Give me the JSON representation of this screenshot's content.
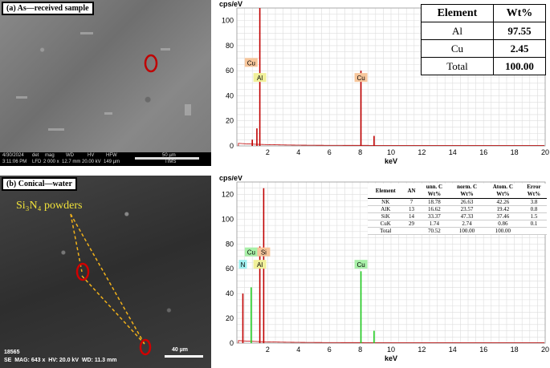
{
  "panel_a": {
    "label": "(a) As—received sample",
    "sem_info": {
      "date": "4/30/2024",
      "time": "3:11:06 PM",
      "det": "det",
      "det_val": "LFD",
      "mag": "mag",
      "mag_val": "2 000 x",
      "wd": "WD",
      "wd_val": "12.7 mm",
      "hv": "HV",
      "hv_val": "20.00 kV",
      "hfw": "HFW",
      "hfw_val": "149 µm",
      "scale": "50 µm",
      "brand": "TIMS"
    },
    "table": {
      "headers": [
        "Element",
        "Wt%"
      ],
      "rows": [
        [
          "Al",
          "97.55"
        ],
        [
          "Cu",
          "2.45"
        ],
        [
          "Total",
          "100.00"
        ]
      ]
    }
  },
  "panel_b": {
    "label": "(b) Conical—water",
    "annotation": "Si₃N₄ powders",
    "sem_info": {
      "id": "18565",
      "line": "SE  MAG: 643 x  HV: 20.0 kV  WD: 11.3 mm",
      "scale": "40 µm"
    },
    "table": {
      "headers": [
        "Element",
        "AN",
        "unn. C\nWt%",
        "norm. C\nWt%",
        "Atom. C\nWt%",
        "Error\nWt%"
      ],
      "rows": [
        [
          "NK",
          "7",
          "18.78",
          "26.63",
          "42.26",
          "3.8"
        ],
        [
          "AlK",
          "13",
          "16.62",
          "23.57",
          "19.42",
          "0.8"
        ],
        [
          "SiK",
          "14",
          "33.37",
          "47.33",
          "37.46",
          "1.5"
        ],
        [
          "CuK",
          "29",
          "1.74",
          "2.74",
          "0.86",
          "0.1"
        ],
        [
          "Total",
          "",
          "70.52",
          "100.00",
          "100.00",
          ""
        ]
      ]
    }
  },
  "chart_data": [
    {
      "type": "line",
      "ylabel": "cps/eV",
      "xlabel": "keV",
      "xlim": [
        0,
        20
      ],
      "ylim": [
        0,
        110
      ],
      "xticks": [
        2,
        4,
        6,
        8,
        10,
        12,
        14,
        16,
        18,
        20
      ],
      "yticks": [
        0,
        20,
        40,
        60,
        80,
        100
      ],
      "peaks": [
        {
          "x": 1.0,
          "y": 5
        },
        {
          "x": 1.49,
          "y": 110
        },
        {
          "x": 1.3,
          "y": 14
        },
        {
          "x": 8.05,
          "y": 60
        },
        {
          "x": 8.9,
          "y": 8
        }
      ],
      "peak_labels": [
        {
          "text": "Cu",
          "x": 0.93,
          "y": 65,
          "color": "#f7c69b"
        },
        {
          "text": "Al",
          "x": 1.49,
          "y": 53,
          "color": "#f0f09a"
        },
        {
          "text": "Cu",
          "x": 8.05,
          "y": 53,
          "color": "#f7c69b"
        }
      ],
      "color": "#c00000"
    },
    {
      "type": "line",
      "ylabel": "cps/eV",
      "xlabel": "keV",
      "xlim": [
        0,
        20
      ],
      "ylim": [
        0,
        130
      ],
      "xticks": [
        2,
        4,
        6,
        8,
        10,
        12,
        14,
        16,
        18,
        20
      ],
      "yticks": [
        0,
        20,
        40,
        60,
        80,
        100,
        120
      ],
      "peaks": [
        {
          "x": 0.39,
          "y": 40
        },
        {
          "x": 0.93,
          "y": 45
        },
        {
          "x": 1.49,
          "y": 78
        },
        {
          "x": 1.74,
          "y": 125
        },
        {
          "x": 8.05,
          "y": 58
        },
        {
          "x": 8.9,
          "y": 10
        }
      ],
      "peak_labels": [
        {
          "text": "N",
          "x": 0.39,
          "y": 62,
          "color": "#9ef0f0"
        },
        {
          "text": "Cu",
          "x": 0.93,
          "y": 72,
          "color": "#a8f0a8"
        },
        {
          "text": "Al",
          "x": 1.49,
          "y": 62,
          "color": "#f0f09a"
        },
        {
          "text": "Si",
          "x": 1.74,
          "y": 72,
          "color": "#f7c69b"
        },
        {
          "text": "Cu",
          "x": 8.05,
          "y": 62,
          "color": "#a8f0a8"
        }
      ],
      "color": "#c00000",
      "green": "#22cc22"
    }
  ]
}
